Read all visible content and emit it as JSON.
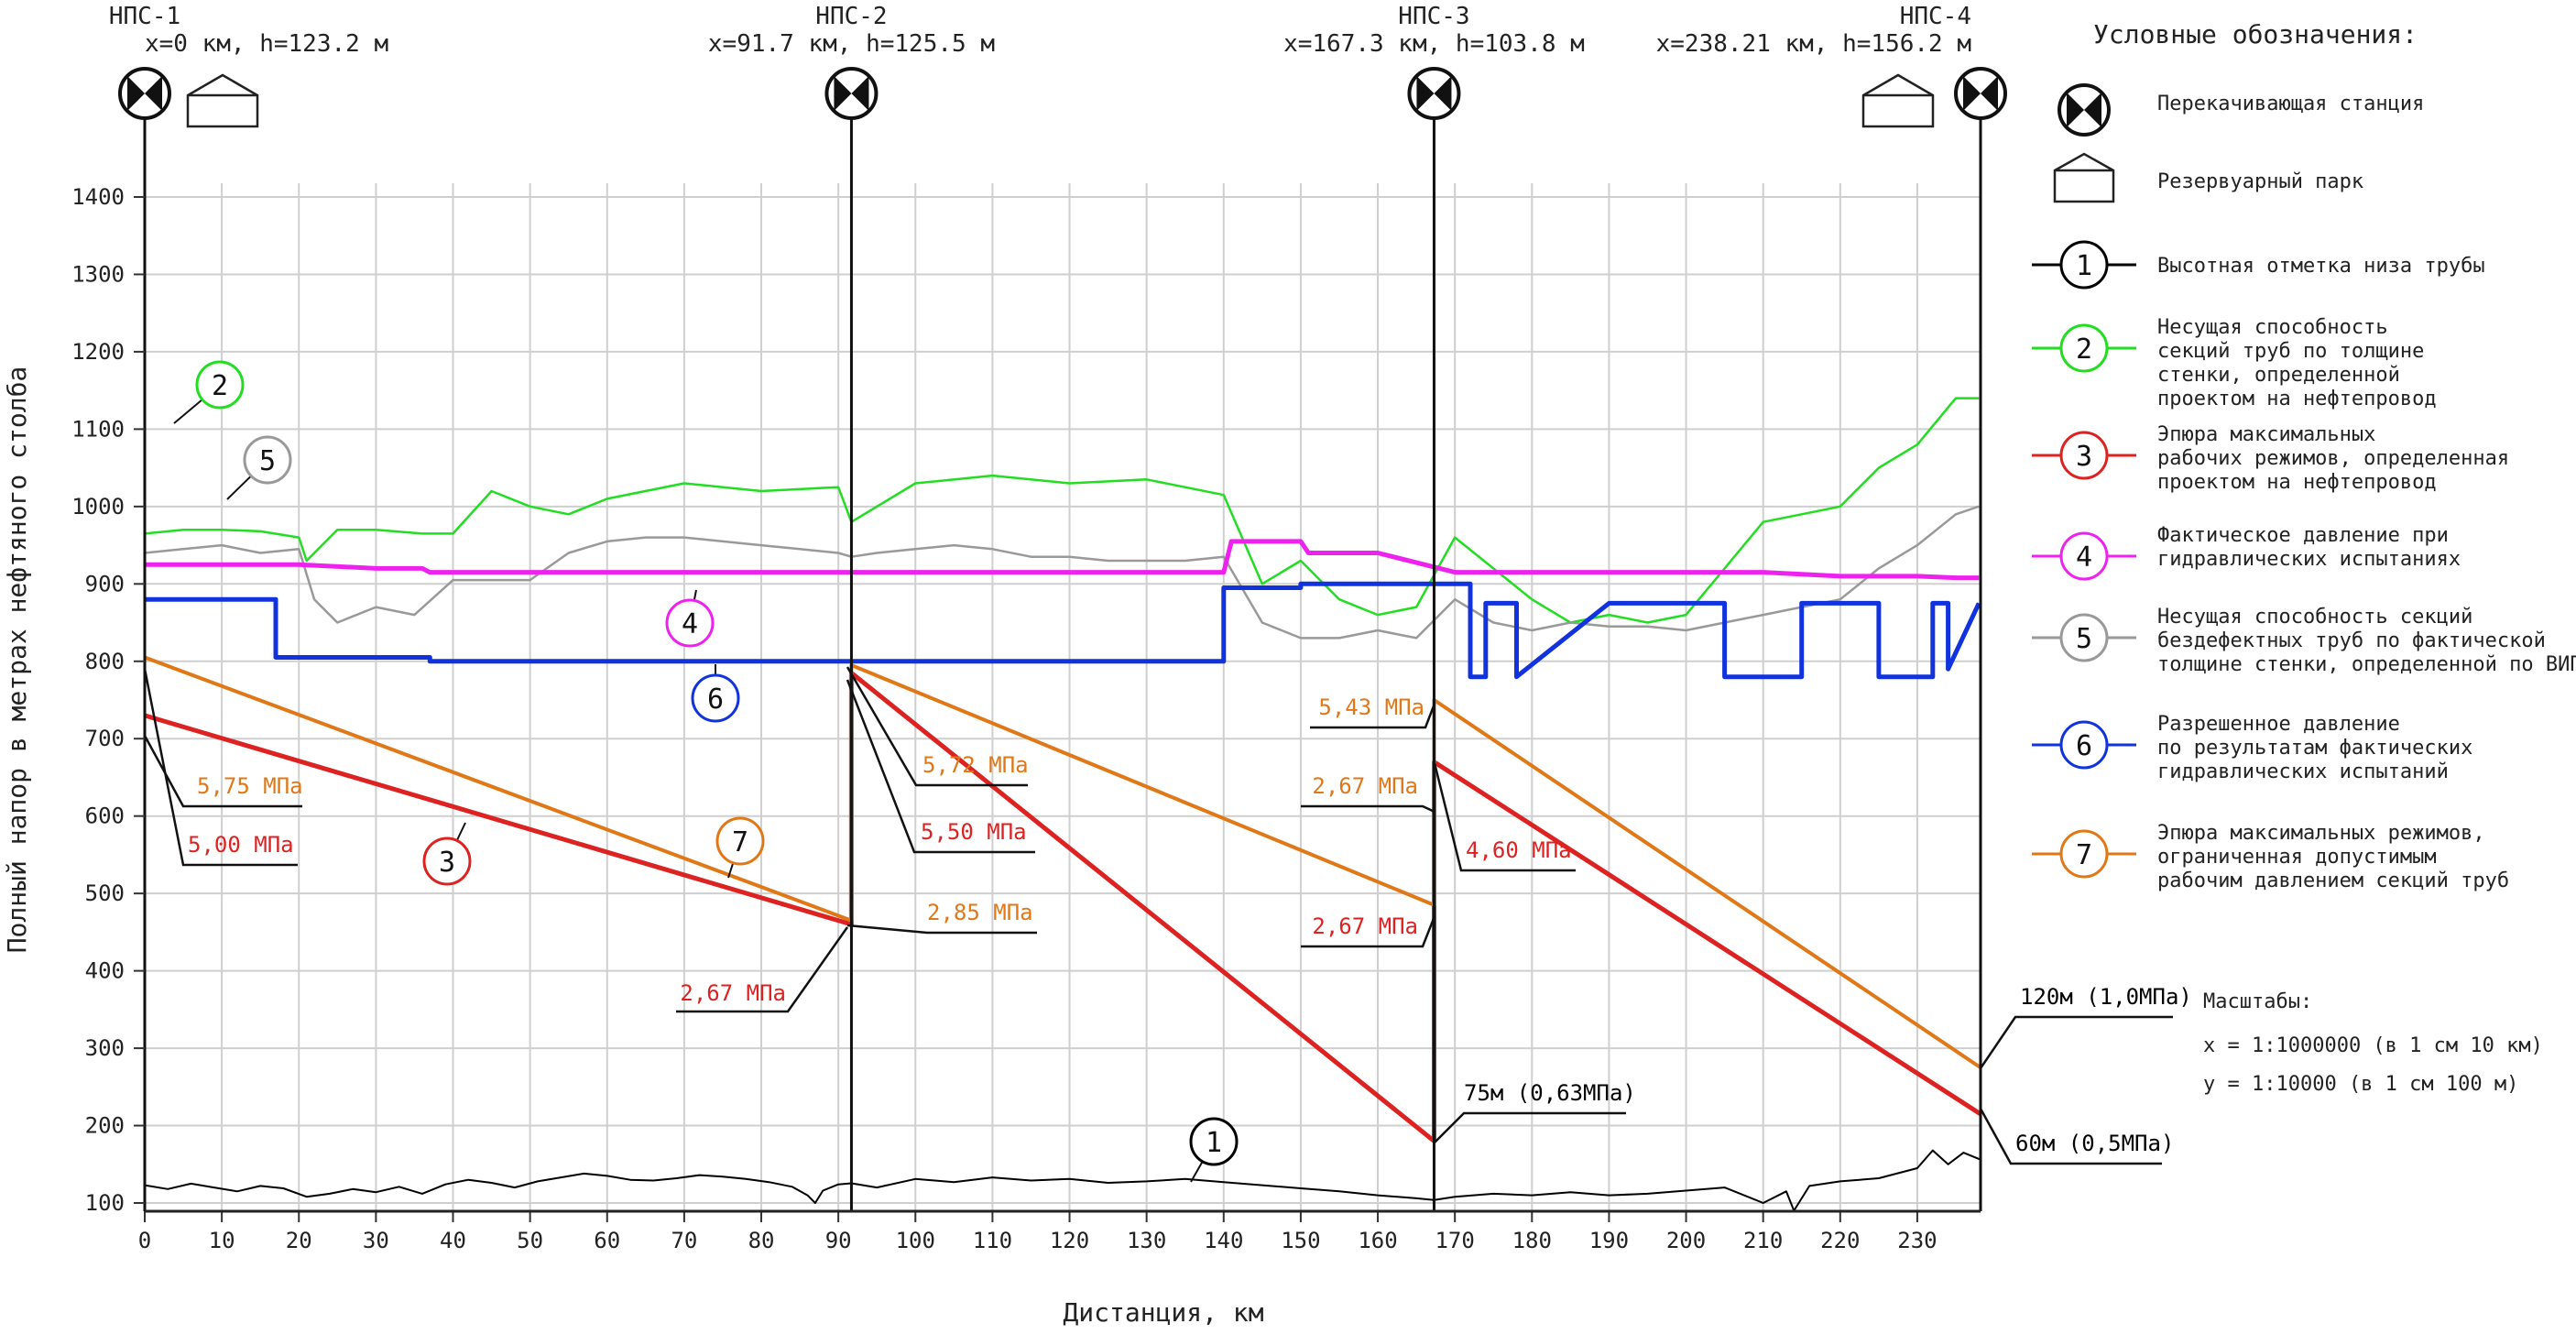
{
  "chart_data": {
    "type": "line",
    "xlabel": "Дистанция, км",
    "ylabel": "Полный напор в метрах нефтяного столба",
    "xlim": [
      0,
      240
    ],
    "ylim": [
      50,
      1450
    ],
    "x_ticks": [
      0,
      10,
      20,
      30,
      40,
      50,
      60,
      70,
      80,
      90,
      100,
      110,
      120,
      130,
      140,
      150,
      160,
      170,
      180,
      190,
      200,
      210,
      220,
      230
    ],
    "y_ticks": [
      100,
      200,
      300,
      400,
      500,
      600,
      700,
      800,
      900,
      1000,
      1100,
      1200,
      1300,
      1400
    ],
    "grid": true,
    "stations": [
      {
        "name": "НПС-1",
        "coords": "x=0 км, h=123.2 м",
        "x": 0,
        "tank": true
      },
      {
        "name": "НПС-2",
        "coords": "x=91.7 км, h=125.5 м",
        "x": 91.7,
        "tank": false
      },
      {
        "name": "НПС-3",
        "coords": "x=167.3 км, h=103.8 м",
        "x": 167.3,
        "tank": false
      },
      {
        "name": "НПС-4",
        "coords": "x=238.21 км, h=156.2 м",
        "x": 238.21,
        "tank": true
      }
    ],
    "series": [
      {
        "id": "1",
        "color": "#000000",
        "x": [
          0,
          3,
          6,
          9,
          12,
          15,
          18,
          21,
          24,
          27,
          30,
          33,
          36,
          39,
          42,
          45,
          48,
          51,
          54,
          57,
          60,
          63,
          66,
          69,
          72,
          75,
          78,
          81,
          84,
          86,
          87,
          88,
          90,
          91.7,
          95,
          100,
          105,
          110,
          115,
          120,
          125,
          130,
          135,
          140,
          145,
          150,
          155,
          160,
          165,
          167.3,
          170,
          175,
          180,
          185,
          190,
          195,
          200,
          205,
          208,
          210,
          213,
          214,
          216,
          220,
          225,
          230,
          232,
          234,
          236,
          238.21
        ],
        "values": [
          123,
          118,
          125,
          120,
          115,
          122,
          119,
          108,
          112,
          118,
          114,
          121,
          112,
          124,
          130,
          126,
          120,
          128,
          133,
          138,
          135,
          130,
          129,
          132,
          136,
          134,
          131,
          127,
          121,
          110,
          100,
          116,
          124,
          125.5,
          120,
          131,
          127,
          133,
          129,
          131,
          126,
          128,
          131,
          127,
          123,
          119,
          115,
          110,
          106,
          103.8,
          108,
          112,
          110,
          114,
          110,
          112,
          116,
          120,
          108,
          100,
          115,
          90,
          122,
          128,
          132,
          145,
          168,
          150,
          165,
          156
        ]
      },
      {
        "id": "2",
        "color": "#22dd22",
        "x": [
          0,
          5,
          10,
          15,
          20,
          21,
          25,
          30,
          36,
          40,
          45,
          50,
          55,
          60,
          70,
          80,
          90,
          91.7,
          100,
          110,
          120,
          130,
          140,
          145,
          150,
          155,
          160,
          165,
          170,
          175,
          180,
          185,
          190,
          195,
          200,
          205,
          210,
          215,
          220,
          225,
          230,
          235,
          238
        ],
        "values": [
          965,
          970,
          970,
          968,
          960,
          930,
          970,
          970,
          965,
          965,
          1020,
          1000,
          990,
          1010,
          1030,
          1020,
          1025,
          980,
          1030,
          1040,
          1030,
          1035,
          1015,
          900,
          930,
          880,
          860,
          870,
          960,
          920,
          880,
          850,
          860,
          850,
          860,
          920,
          980,
          990,
          1000,
          1050,
          1080,
          1140,
          1140
        ]
      },
      {
        "id": "5",
        "color": "#999999",
        "x": [
          0,
          5,
          10,
          15,
          20,
          22,
          25,
          30,
          35,
          40,
          45,
          50,
          55,
          60,
          65,
          70,
          75,
          80,
          85,
          90,
          91.7,
          95,
          100,
          105,
          110,
          115,
          120,
          125,
          130,
          135,
          140,
          145,
          150,
          155,
          160,
          165,
          170,
          175,
          180,
          185,
          190,
          195,
          200,
          205,
          210,
          215,
          220,
          225,
          230,
          235,
          238
        ],
        "values": [
          940,
          945,
          950,
          940,
          945,
          880,
          850,
          870,
          860,
          905,
          905,
          905,
          940,
          955,
          960,
          960,
          955,
          950,
          945,
          940,
          935,
          940,
          945,
          950,
          945,
          935,
          935,
          930,
          930,
          930,
          935,
          850,
          830,
          830,
          840,
          830,
          880,
          850,
          840,
          850,
          845,
          845,
          840,
          850,
          860,
          870,
          880,
          920,
          950,
          990,
          1000
        ]
      },
      {
        "id": "4",
        "color": "#ee22ee",
        "x": [
          0,
          10,
          20,
          30,
          36,
          37,
          40,
          50,
          60,
          70,
          80,
          90,
          91.7,
          100,
          110,
          120,
          130,
          140,
          141,
          150,
          151,
          160,
          170,
          180,
          190,
          200,
          210,
          220,
          230,
          235,
          238
        ],
        "values": [
          925,
          925,
          925,
          920,
          920,
          915,
          915,
          915,
          915,
          915,
          915,
          915,
          915,
          915,
          915,
          915,
          915,
          915,
          955,
          955,
          940,
          940,
          915,
          915,
          915,
          915,
          915,
          910,
          910,
          908,
          908
        ]
      },
      {
        "id": "6",
        "color": "#1133dd",
        "x": [
          0,
          17,
          17,
          37,
          37,
          91.7,
          140,
          140,
          150,
          150,
          167.3,
          172,
          172,
          174,
          174,
          178,
          178,
          190,
          200,
          205,
          205,
          210,
          215,
          215,
          220,
          225,
          225,
          232,
          232,
          234,
          234,
          238
        ],
        "values": [
          880,
          880,
          805,
          805,
          800,
          800,
          800,
          895,
          895,
          900,
          900,
          900,
          780,
          780,
          875,
          875,
          780,
          875,
          875,
          875,
          780,
          780,
          780,
          875,
          875,
          875,
          780,
          780,
          875,
          875,
          790,
          875
        ]
      },
      {
        "id": "3",
        "color": "#dd2222",
        "x": [
          0,
          91.7,
          91.7,
          167.3,
          167.3,
          238.21
        ],
        "values": [
          730,
          460,
          785,
          180,
          670,
          215
        ]
      },
      {
        "id": "7",
        "color": "#e07818",
        "x": [
          0,
          91.7,
          91.7,
          167.3,
          167.3,
          238.21
        ],
        "values": [
          805,
          465,
          795,
          485,
          750,
          275
        ]
      }
    ],
    "annotations": [
      {
        "text": "5,75 МПа",
        "color": "#e07818"
      },
      {
        "text": "5,00 МПа",
        "color": "#dd2222"
      },
      {
        "text": "2,67 МПа",
        "color": "#dd2222"
      },
      {
        "text": "2,85 МПа",
        "color": "#e07818"
      },
      {
        "text": "5,72 МПа",
        "color": "#e07818"
      },
      {
        "text": "5,50 МПа",
        "color": "#dd2222"
      },
      {
        "text": "5,43 МПа",
        "color": "#e07818"
      },
      {
        "text": "2,67 МПа",
        "color": "#e07818"
      },
      {
        "text": "4,60 МПа",
        "color": "#dd2222"
      },
      {
        "text": "2,67 МПа",
        "color": "#dd2222"
      },
      {
        "text": "75м (0,63МПа)",
        "color": "#000000"
      },
      {
        "text": "120м (1,0МПа)",
        "color": "#000000"
      },
      {
        "text": "60м (0,5МПа)",
        "color": "#000000"
      }
    ]
  },
  "legend": {
    "title": "Условные обозначения:",
    "station_label": "Перекачивающая станция",
    "tank_label": "Резервуарный парк",
    "items": [
      {
        "num": "1",
        "color": "#000000",
        "lines": [
          "Высотная отметка низа трубы"
        ]
      },
      {
        "num": "2",
        "color": "#22dd22",
        "lines": [
          "Несущая способность",
          "секций труб по толщине",
          "стенки, определенной",
          "проектом на нефтепровод"
        ]
      },
      {
        "num": "3",
        "color": "#dd2222",
        "lines": [
          "Эпюра максимальных",
          "рабочих режимов, определенная",
          "проектом на нефтепровод"
        ]
      },
      {
        "num": "4",
        "color": "#ee22ee",
        "lines": [
          "Фактическое давление при",
          "гидравлических испытаниях"
        ]
      },
      {
        "num": "5",
        "color": "#999999",
        "lines": [
          "Несущая способность секций",
          "бездефектных труб по фактической",
          "толщине стенки, определенной по ВИП"
        ]
      },
      {
        "num": "6",
        "color": "#1133dd",
        "lines": [
          "Разрешенное давление",
          "по результатам фактических",
          "гидравлических испытаний"
        ]
      },
      {
        "num": "7",
        "color": "#e07818",
        "lines": [
          "Эпюра максимальных режимов,",
          "ограниченная допустимым",
          "рабочим давлением секций труб"
        ]
      }
    ]
  },
  "scales": {
    "title": "Масштабы:",
    "x": "x = 1:1000000 (в 1 см 10 км)",
    "y": "y = 1:10000 (в 1 см 100 м)"
  }
}
